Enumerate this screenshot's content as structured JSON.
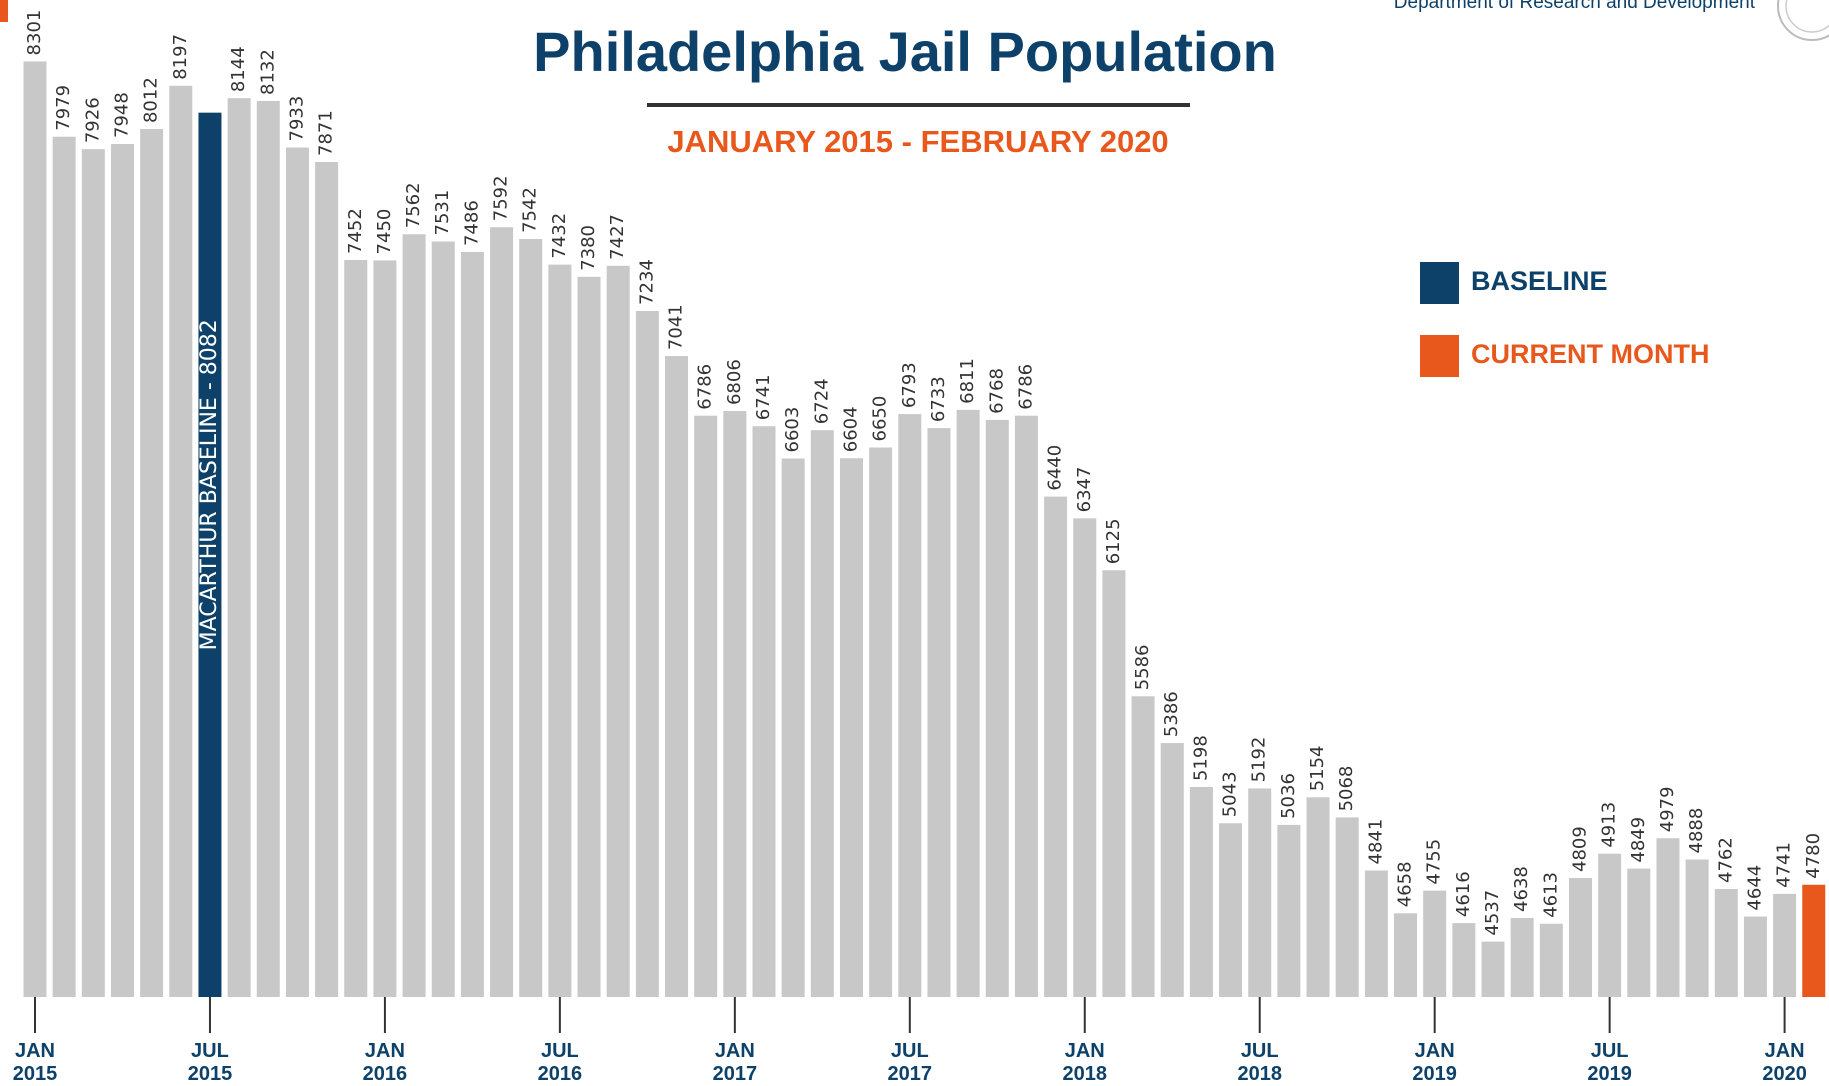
{
  "chart_data": {
    "type": "bar",
    "title": "Philadelphia Jail Population",
    "subtitle": "JANUARY 2015 - FEBRUARY 2020",
    "source": "Department of Research and Development",
    "categories": [
      "JAN 2015",
      null,
      null,
      null,
      null,
      null,
      "JUL 2015",
      null,
      null,
      null,
      null,
      null,
      "JAN 2016",
      null,
      null,
      null,
      null,
      null,
      "JUL 2016",
      null,
      null,
      null,
      null,
      null,
      "JAN 2017",
      null,
      null,
      null,
      null,
      null,
      "JUL 2017",
      null,
      null,
      null,
      null,
      null,
      "JAN 2018",
      null,
      null,
      null,
      null,
      null,
      "JUL 2018",
      null,
      null,
      null,
      null,
      null,
      "JAN 2019",
      null,
      null,
      null,
      null,
      null,
      "JUL 2019",
      null,
      null,
      null,
      null,
      null,
      "JAN 2020",
      null
    ],
    "values": [
      8301,
      7979,
      7926,
      7948,
      8012,
      8197,
      8082,
      8144,
      8132,
      7933,
      7871,
      7452,
      7450,
      7562,
      7531,
      7486,
      7592,
      7542,
      7432,
      7380,
      7427,
      7234,
      7041,
      6786,
      6806,
      6741,
      6603,
      6724,
      6604,
      6650,
      6793,
      6733,
      6811,
      6768,
      6786,
      6440,
      6347,
      6125,
      5586,
      5386,
      5198,
      5043,
      5192,
      5036,
      5154,
      5068,
      4841,
      4658,
      4755,
      4616,
      4537,
      4638,
      4613,
      4809,
      4913,
      4849,
      4979,
      4888,
      4762,
      4644,
      4741,
      4780
    ],
    "value_labels": [
      "8301",
      "7979",
      "7926",
      "7948",
      "8012",
      "8197",
      null,
      "8144",
      "8132",
      "7933",
      "7871",
      "7452",
      "7450",
      "7562",
      "7531",
      "7486",
      "7592",
      "7542",
      "7432",
      "7380",
      "7427",
      "7234",
      "7041",
      "6786",
      "6806",
      "6741",
      "6603",
      "6724",
      "6604",
      "6650",
      "6793",
      "6733",
      "6811",
      "6768",
      "6786",
      "6440",
      "6347",
      "6125",
      "5586",
      "5386",
      "5198",
      "5043",
      "5192",
      "5036",
      "5154",
      "5068",
      "4841",
      "4658",
      "4755",
      "4616",
      "4537",
      "4638",
      "4613",
      "4809",
      "4913",
      "4849",
      "4979",
      "4888",
      "4762",
      "4644",
      "4741",
      "4780"
    ],
    "colors": [
      "#c8c8c8",
      "#c8c8c8",
      "#c8c8c8",
      "#c8c8c8",
      "#c8c8c8",
      "#c8c8c8",
      "#0d4169",
      "#c8c8c8",
      "#c8c8c8",
      "#c8c8c8",
      "#c8c8c8",
      "#c8c8c8",
      "#c8c8c8",
      "#c8c8c8",
      "#c8c8c8",
      "#c8c8c8",
      "#c8c8c8",
      "#c8c8c8",
      "#c8c8c8",
      "#c8c8c8",
      "#c8c8c8",
      "#c8c8c8",
      "#c8c8c8",
      "#c8c8c8",
      "#c8c8c8",
      "#c8c8c8",
      "#c8c8c8",
      "#c8c8c8",
      "#c8c8c8",
      "#c8c8c8",
      "#c8c8c8",
      "#c8c8c8",
      "#c8c8c8",
      "#c8c8c8",
      "#c8c8c8",
      "#c8c8c8",
      "#c8c8c8",
      "#c8c8c8",
      "#c8c8c8",
      "#c8c8c8",
      "#c8c8c8",
      "#c8c8c8",
      "#c8c8c8",
      "#c8c8c8",
      "#c8c8c8",
      "#c8c8c8",
      "#c8c8c8",
      "#c8c8c8",
      "#c8c8c8",
      "#c8c8c8",
      "#c8c8c8",
      "#c8c8c8",
      "#c8c8c8",
      "#c8c8c8",
      "#c8c8c8",
      "#c8c8c8",
      "#c8c8c8",
      "#c8c8c8",
      "#c8c8c8",
      "#c8c8c8",
      "#c8c8c8",
      "#e8581c"
    ],
    "annotation": {
      "text": "MACARTHUR BASELINE - 8082",
      "x": "JUL 2015"
    },
    "legend": [
      {
        "name": "BASELINE",
        "color": "#0d4169"
      },
      {
        "name": "CURRENT MONTH",
        "color": "#e8581c"
      }
    ],
    "ylim": [
      4300,
      8350
    ]
  }
}
